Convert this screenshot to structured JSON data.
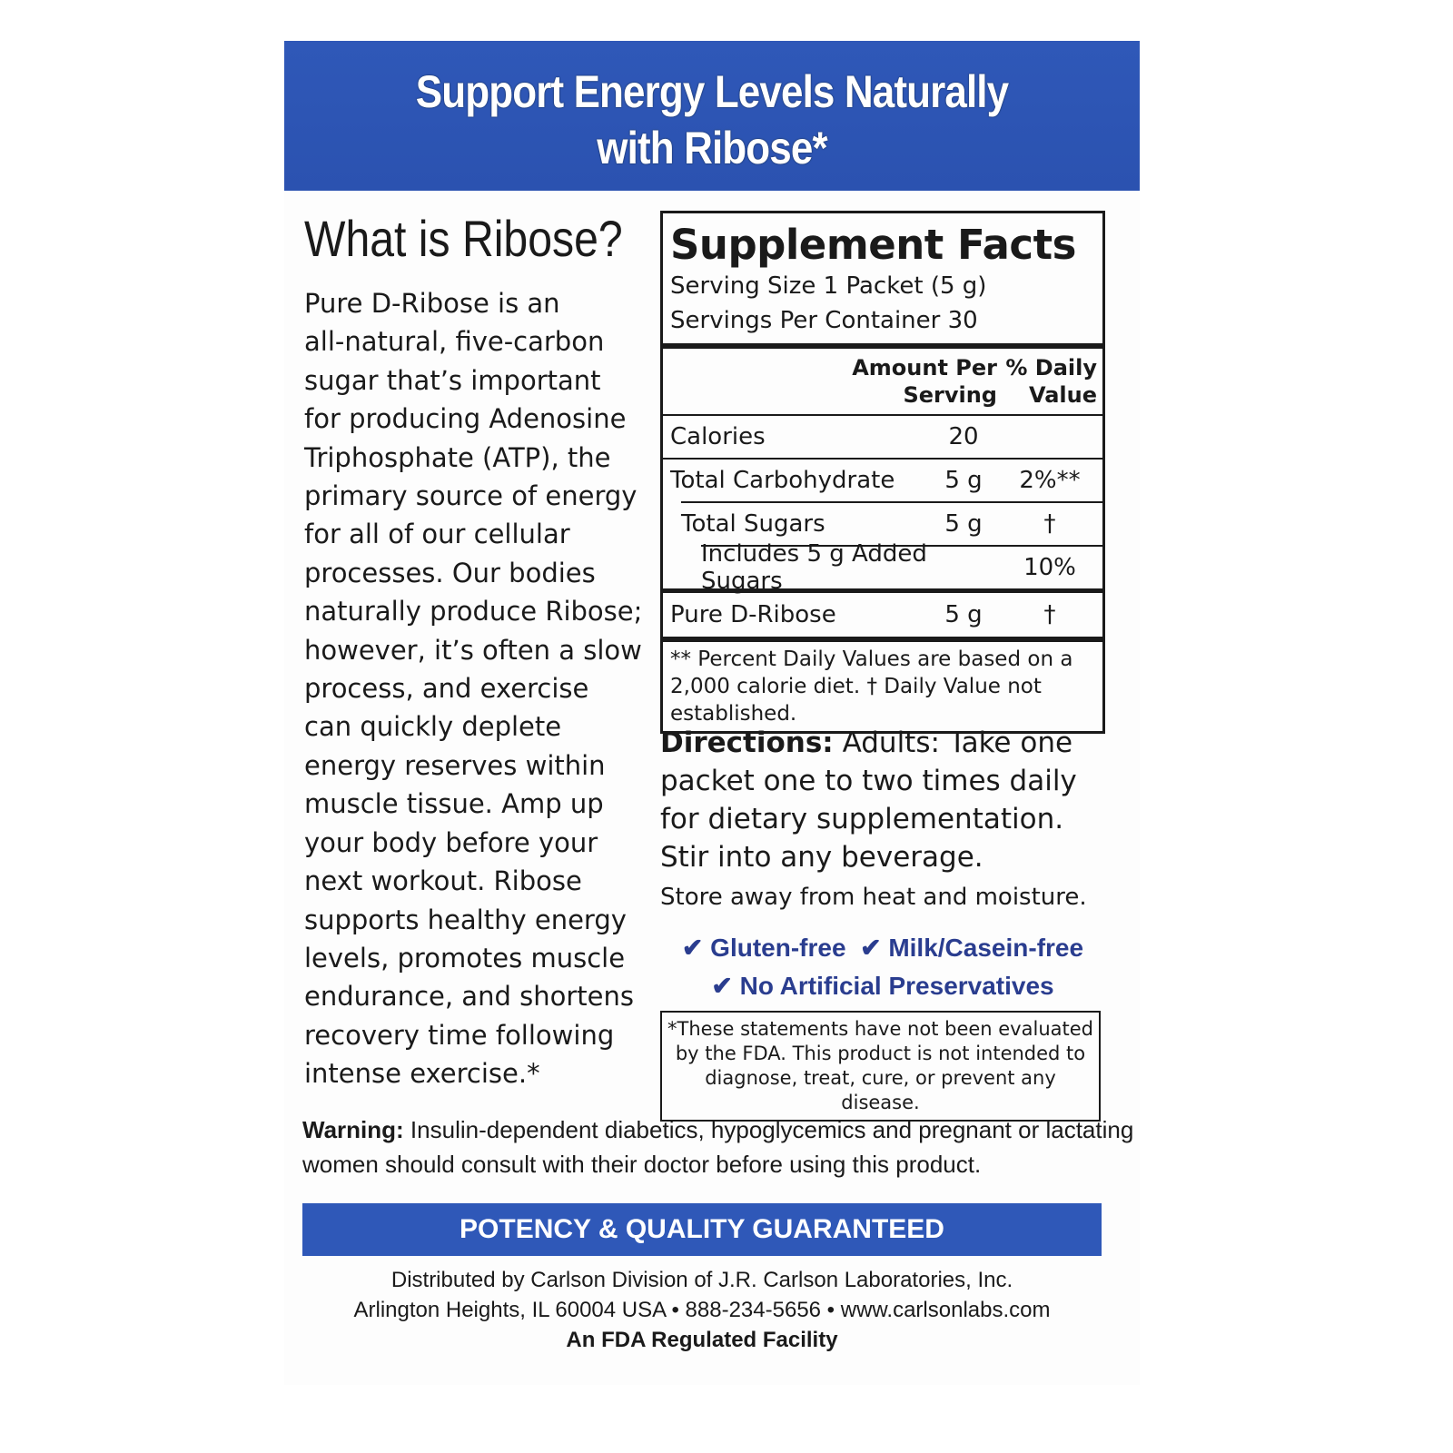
{
  "colors": {
    "band": "#2f58b8",
    "checks": "#2a3d8f"
  },
  "header": {
    "line1": "Support Energy Levels Naturally",
    "line2": "with Ribose*"
  },
  "left": {
    "title": "What is Ribose?",
    "lines": [
      "Pure D-Ribose is an",
      "all-natural, five-carbon",
      "sugar that’s important",
      "for producing Adenosine",
      "Triphosphate (ATP), the",
      "primary source of energy",
      "for all of our cellular",
      "processes. Our bodies",
      "naturally produce Ribose;",
      "however, it’s often a slow",
      "process, and exercise",
      "can quickly deplete",
      "energy reserves within",
      "muscle tissue. Amp up",
      "your body before your",
      "next workout. Ribose",
      "supports healthy energy",
      "levels, promotes muscle",
      "endurance, and shortens",
      "recovery time following",
      "intense exercise.*"
    ]
  },
  "facts": {
    "title": "Supplement Facts",
    "serving_size": "Serving Size 1 Packet (5 g)",
    "servings": "Servings Per Container 30",
    "col_amount": "Amount Per Serving",
    "col_dv": "% Daily Value",
    "rows": [
      {
        "name": "Calories",
        "amount": "20",
        "dv": ""
      },
      {
        "name": "Total Carbohydrate",
        "amount": "5 g",
        "dv": "2%**"
      },
      {
        "name": "Total Sugars",
        "amount": "5 g",
        "dv": "†"
      },
      {
        "name": "Includes 5 g Added Sugars",
        "amount": "",
        "dv": "10%"
      },
      {
        "name": "Pure D-Ribose",
        "amount": "5 g",
        "dv": "†"
      }
    ],
    "note": "** Percent Daily Values are based on a 2,000 calorie diet.  † Daily Value not established."
  },
  "directions": {
    "label": "Directions:",
    "text": "Adults: Take one packet one to two times daily for dietary supplementation. Stir into any beverage.",
    "store": "Store away from heat and moisture."
  },
  "checks": [
    "✔ Gluten-free",
    "✔ Milk/Casein-free",
    "✔ No Artificial Preservatives"
  ],
  "fda": "*These statements have not been evaluated by the FDA. This product is not intended to diagnose, treat, cure, or prevent any disease.",
  "warning": {
    "label": "Warning:",
    "text": "Insulin-dependent diabetics, hypoglycemics and pregnant or lactating women should consult with their doctor before using this product."
  },
  "banner": "POTENCY & QUALITY GUARANTEED",
  "distributor": {
    "line1": "Distributed by Carlson Division of J.R. Carlson Laboratories, Inc.",
    "line2": "Arlington Heights, IL  60004 USA  •  888-234-5656 • www.carlsonlabs.com",
    "line3": "An FDA Regulated Facility"
  }
}
